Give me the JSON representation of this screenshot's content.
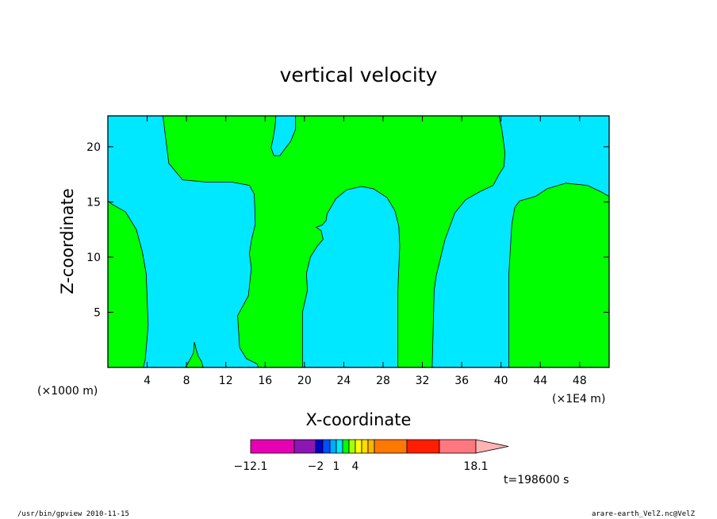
{
  "chart_data": {
    "type": "heatmap",
    "title": "vertical velocity",
    "xlabel": "X-coordinate",
    "ylabel": "Z-coordinate",
    "x_unit_left": "(×1000 m)",
    "x_unit_right": "(×1E4 m)",
    "xlim": [
      0,
      51
    ],
    "ylim": [
      0,
      22.8
    ],
    "x_ticks": [
      4,
      8,
      12,
      16,
      20,
      24,
      28,
      32,
      36,
      40,
      44,
      48
    ],
    "y_ticks": [
      5,
      10,
      15,
      20
    ],
    "regions": [
      {
        "color": "#00e8ff",
        "points": [
          [
            0,
            22.8
          ],
          [
            5.6,
            22.8
          ],
          [
            6.2,
            18.5
          ],
          [
            7.6,
            17
          ],
          [
            10,
            16.8
          ],
          [
            12.6,
            16.8
          ],
          [
            14.4,
            16.5
          ],
          [
            14.9,
            15.7
          ],
          [
            15,
            13
          ],
          [
            14.6,
            11.5
          ],
          [
            14.4,
            10.3
          ],
          [
            14.6,
            9
          ],
          [
            14.3,
            6.5
          ],
          [
            13.2,
            4.7
          ],
          [
            13.4,
            1.8
          ],
          [
            14.1,
            0.8
          ],
          [
            15.2,
            0.3
          ],
          [
            15.3,
            0
          ],
          [
            9.5,
            0
          ],
          [
            9.2,
            0.5
          ],
          [
            9,
            1.3
          ],
          [
            8.8,
            0.5
          ],
          [
            8.2,
            0
          ],
          [
            3.6,
            0
          ],
          [
            3.8,
            0.7
          ],
          [
            4.1,
            3.8
          ],
          [
            3.9,
            8.5
          ],
          [
            3.5,
            10.5
          ],
          [
            2.9,
            12.5
          ],
          [
            1.8,
            14.1
          ],
          [
            0.4,
            14.8
          ],
          [
            0,
            15.1
          ]
        ]
      },
      {
        "color": "#00e8ff",
        "points": [
          [
            17.1,
            22.8
          ],
          [
            19.1,
            22.8
          ],
          [
            19.1,
            21.6
          ],
          [
            18.6,
            20.5
          ],
          [
            18,
            19.8
          ],
          [
            17.5,
            19.2
          ],
          [
            16.9,
            19.2
          ],
          [
            16.6,
            19.9
          ],
          [
            16.8,
            20.7
          ],
          [
            17,
            21.8
          ]
        ]
      },
      {
        "color": "#00e8ff",
        "points": [
          [
            19.8,
            0
          ],
          [
            19.8,
            3.5
          ],
          [
            19.8,
            5
          ],
          [
            20.3,
            7
          ],
          [
            20.2,
            8.5
          ],
          [
            20.6,
            10
          ],
          [
            21.3,
            11
          ],
          [
            21.9,
            11.6
          ],
          [
            21.7,
            12.4
          ],
          [
            21.2,
            12.7
          ],
          [
            21.8,
            12.9
          ],
          [
            22.2,
            13.3
          ],
          [
            22.3,
            13.9
          ],
          [
            23.2,
            15.3
          ],
          [
            24.3,
            16.1
          ],
          [
            25.8,
            16.4
          ],
          [
            27,
            16.2
          ],
          [
            28.4,
            15.4
          ],
          [
            29.2,
            14.2
          ],
          [
            29.6,
            12.8
          ],
          [
            29.7,
            11
          ],
          [
            29.5,
            7
          ],
          [
            29.5,
            0
          ]
        ]
      },
      {
        "color": "#00e8ff",
        "points": [
          [
            33,
            0
          ],
          [
            33.2,
            7
          ],
          [
            33.4,
            8.3
          ],
          [
            34.3,
            11.6
          ],
          [
            35.3,
            14
          ],
          [
            36.4,
            15.2
          ],
          [
            37.8,
            15.9
          ],
          [
            39.2,
            16.5
          ],
          [
            39.8,
            17.5
          ],
          [
            40.3,
            18.2
          ],
          [
            40.4,
            19.5
          ],
          [
            40.1,
            21.5
          ],
          [
            39.8,
            22.8
          ],
          [
            51,
            22.8
          ],
          [
            51,
            15.5
          ],
          [
            50.2,
            15.9
          ],
          [
            48.8,
            16.5
          ],
          [
            46.6,
            16.7
          ],
          [
            44.7,
            16.2
          ],
          [
            43.5,
            15.5
          ],
          [
            41.9,
            15.1
          ],
          [
            41.4,
            14.5
          ],
          [
            41.1,
            13
          ],
          [
            40.8,
            8.5
          ],
          [
            40.8,
            0
          ]
        ]
      },
      {
        "color": "#00ff00",
        "points": [
          [
            7.9,
            0
          ],
          [
            8.1,
            0.3
          ],
          [
            8.4,
            0.8
          ],
          [
            8.7,
            1.3
          ],
          [
            8.8,
            2.3
          ],
          [
            9,
            1.6
          ],
          [
            9.2,
            1
          ],
          [
            9.5,
            0.6
          ],
          [
            9.7,
            0
          ]
        ]
      }
    ],
    "colorbar": {
      "levels": [
        -12.1,
        -2,
        1,
        4,
        18.1
      ],
      "colors": [
        "#e600b4",
        "#8c16b4",
        "#0000c8",
        "#0050ff",
        "#00aaff",
        "#00e8ff",
        "#00ff00",
        "#aaff00",
        "#ffff00",
        "#ffdc00",
        "#ffb400",
        "#ff7800",
        "#ff1e00",
        "#ff7880",
        "#ffb4b4"
      ],
      "labels": [
        "-12.1",
        "-2",
        "1",
        "4",
        "18.1"
      ]
    },
    "background_color": "#00ff00",
    "time_label": "t=198600 s",
    "footer_left": "/usr/bin/gpview   2010-11-15",
    "footer_right": "arare-earth_VelZ.nc@VelZ"
  }
}
